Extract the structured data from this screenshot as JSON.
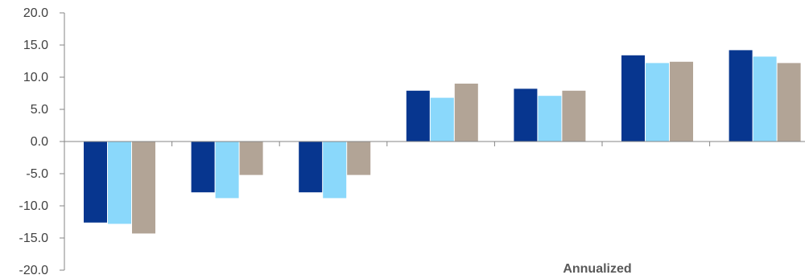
{
  "chart_data": {
    "type": "bar",
    "categories": [
      "",
      "",
      "",
      "",
      "",
      "",
      ""
    ],
    "series": [
      {
        "color": "#07368f",
        "values": [
          -12.6,
          -7.9,
          -7.9,
          7.9,
          8.2,
          13.4,
          14.2
        ]
      },
      {
        "color": "#8ad8fb",
        "values": [
          -12.8,
          -8.8,
          -8.8,
          6.8,
          7.1,
          12.2,
          13.2
        ]
      },
      {
        "color": "#b2a496",
        "values": [
          -14.3,
          -5.2,
          -5.2,
          9.0,
          7.9,
          12.4,
          12.2
        ]
      }
    ],
    "ylim": [
      -20,
      20
    ],
    "yticks": [
      20,
      15,
      10,
      5,
      0,
      -5,
      -10,
      -15,
      -20
    ],
    "ytick_labels": [
      "20.0",
      "15.0",
      "10.0",
      "5.0",
      "0.0",
      "-5.0",
      "-10.0",
      "-15.0",
      "-20.0"
    ],
    "annotation": "Annualized",
    "grid": false,
    "axis_color": "#868686"
  }
}
